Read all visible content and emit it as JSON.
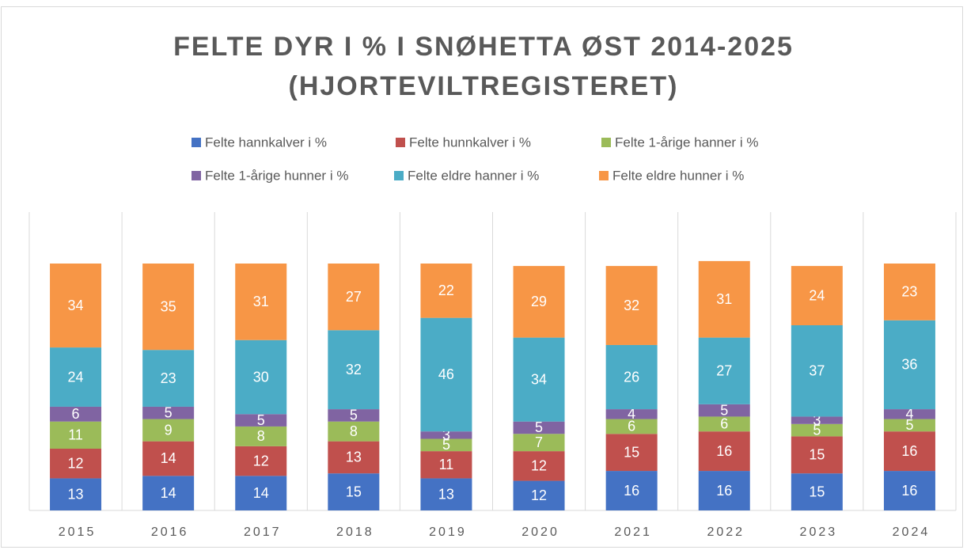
{
  "chart_data": {
    "type": "stacked_bar",
    "title": "FELTE DYR I % I SNØHETTA ØST 2014-2025 (HJORTEVILTREGISTERET)",
    "categories": [
      "2015",
      "2016",
      "2017",
      "2018",
      "2019",
      "2020",
      "2021",
      "2022",
      "2023",
      "2024"
    ],
    "legend": "top",
    "grid": true,
    "series": [
      {
        "name": "Felte hannkalver i %",
        "color": "#4472c4",
        "values": [
          13,
          14,
          14,
          15,
          13,
          12,
          16,
          16,
          15,
          16
        ]
      },
      {
        "name": "Felte hunnkalver i %",
        "color": "#c0504d",
        "values": [
          12,
          14,
          12,
          13,
          11,
          12,
          15,
          16,
          15,
          16
        ]
      },
      {
        "name": "Felte 1-årige hanner i %",
        "color": "#9bbb59",
        "values": [
          11,
          9,
          8,
          8,
          5,
          7,
          6,
          6,
          5,
          5
        ]
      },
      {
        "name": "Felte 1-årige hunner i %",
        "color": "#8064a2",
        "values": [
          6,
          5,
          5,
          5,
          3,
          5,
          4,
          5,
          3,
          4
        ]
      },
      {
        "name": "Felte eldre hanner i %",
        "color": "#4bacc6",
        "values": [
          24,
          23,
          30,
          32,
          46,
          34,
          26,
          27,
          37,
          36
        ]
      },
      {
        "name": "Felte eldre hunner i %",
        "color": "#f79646",
        "values": [
          34,
          35,
          31,
          27,
          22,
          29,
          32,
          31,
          24,
          23
        ]
      }
    ]
  }
}
